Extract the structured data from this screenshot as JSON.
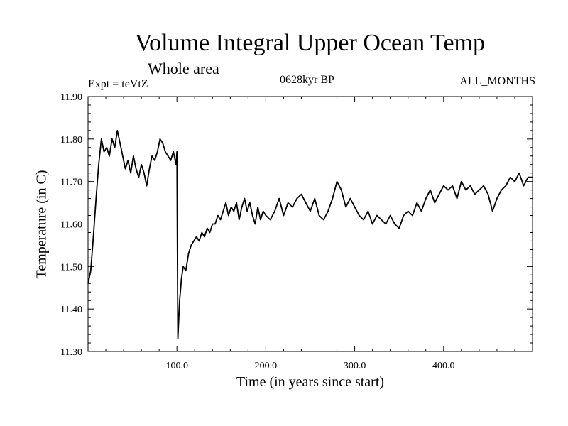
{
  "header": {
    "title": "Volume Integral Upper Ocean Temp",
    "subtitle": "Whole area",
    "experiment": "Expt = teVtZ",
    "period": "0628kyr BP",
    "months": "ALL_MONTHS"
  },
  "chart_data": {
    "type": "line",
    "title": "Volume Integral Upper Ocean Temp",
    "subtitle": "Whole area",
    "xlabel": "Time (in years since start)",
    "ylabel": "Temperature (in C)",
    "xlim": [
      0,
      500
    ],
    "ylim": [
      11.3,
      11.9
    ],
    "x_ticks": [
      100,
      200,
      300,
      400
    ],
    "x_tick_labels": [
      "100.0",
      "200.0",
      "300.0",
      "400.0"
    ],
    "y_ticks": [
      11.3,
      11.4,
      11.5,
      11.6,
      11.7,
      11.8,
      11.9
    ],
    "y_tick_labels": [
      "11.30",
      "11.40",
      "11.50",
      "11.60",
      "11.70",
      "11.80",
      "11.90"
    ],
    "grid": false,
    "series": [
      {
        "x": [
          0,
          3,
          6,
          9,
          12,
          15,
          18,
          21,
          24,
          27,
          30,
          33,
          36,
          39,
          42,
          45,
          48,
          51,
          54,
          57,
          60,
          63,
          66,
          69,
          72,
          75,
          78,
          81,
          84,
          87,
          90,
          93,
          96,
          99,
          100,
          100.5,
          101,
          103,
          105,
          107,
          110,
          113,
          116,
          119,
          122,
          125,
          128,
          131,
          134,
          137,
          140,
          143,
          146,
          149,
          152,
          155,
          158,
          161,
          164,
          167,
          170,
          173,
          176,
          179,
          182,
          185,
          188,
          191,
          194,
          197,
          200,
          205,
          210,
          215,
          220,
          225,
          230,
          235,
          240,
          245,
          250,
          255,
          260,
          265,
          270,
          275,
          280,
          285,
          290,
          295,
          300,
          305,
          310,
          315,
          320,
          325,
          330,
          335,
          340,
          345,
          350,
          355,
          360,
          365,
          370,
          375,
          380,
          385,
          390,
          395,
          400,
          405,
          410,
          415,
          420,
          425,
          430,
          435,
          440,
          445,
          450,
          455,
          460,
          465,
          470,
          475,
          480,
          485,
          490,
          495,
          500
        ],
        "y": [
          11.46,
          11.49,
          11.57,
          11.66,
          11.74,
          11.8,
          11.77,
          11.78,
          11.76,
          11.8,
          11.78,
          11.82,
          11.79,
          11.76,
          11.73,
          11.75,
          11.72,
          11.76,
          11.73,
          11.71,
          11.74,
          11.72,
          11.69,
          11.73,
          11.76,
          11.75,
          11.77,
          11.8,
          11.79,
          11.77,
          11.76,
          11.75,
          11.77,
          11.74,
          11.77,
          11.55,
          11.33,
          11.42,
          11.47,
          11.5,
          11.49,
          11.53,
          11.55,
          11.56,
          11.57,
          11.56,
          11.58,
          11.57,
          11.59,
          11.58,
          11.6,
          11.6,
          11.62,
          11.61,
          11.63,
          11.65,
          11.62,
          11.64,
          11.63,
          11.65,
          11.61,
          11.64,
          11.66,
          11.63,
          11.65,
          11.62,
          11.6,
          11.64,
          11.61,
          11.63,
          11.62,
          11.61,
          11.63,
          11.66,
          11.62,
          11.65,
          11.64,
          11.66,
          11.67,
          11.65,
          11.63,
          11.66,
          11.62,
          11.61,
          11.63,
          11.66,
          11.7,
          11.68,
          11.64,
          11.66,
          11.64,
          11.62,
          11.61,
          11.63,
          11.6,
          11.62,
          11.61,
          11.6,
          11.62,
          11.6,
          11.59,
          11.62,
          11.63,
          11.62,
          11.65,
          11.63,
          11.66,
          11.68,
          11.65,
          11.67,
          11.69,
          11.68,
          11.69,
          11.66,
          11.7,
          11.68,
          11.69,
          11.67,
          11.68,
          11.69,
          11.67,
          11.63,
          11.66,
          11.68,
          11.69,
          11.71,
          11.7,
          11.72,
          11.69,
          11.71,
          11.71
        ]
      }
    ]
  }
}
